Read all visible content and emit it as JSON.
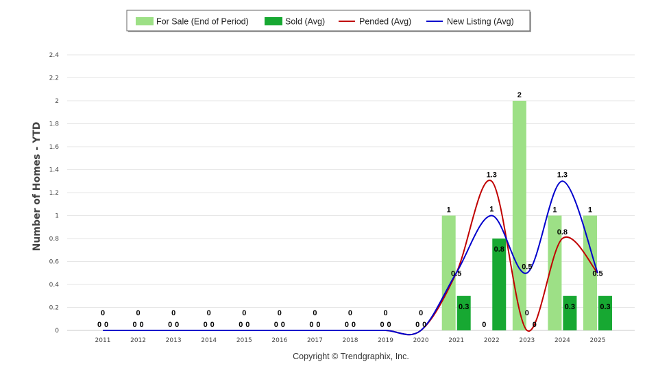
{
  "chart_data": {
    "type": "bar",
    "ylabel": "Number of Homes - YTD",
    "xlabel": "",
    "ylim": [
      0,
      2.4
    ],
    "yticks": [
      "0",
      "0.2",
      "0.4",
      "0.6",
      "0.8",
      "1",
      "1.2",
      "1.4",
      "1.6",
      "1.8",
      "2",
      "2.2",
      "2.4"
    ],
    "grid": true,
    "legend_position": "top-center",
    "categories": [
      "2011",
      "2012",
      "2013",
      "2014",
      "2015",
      "2016",
      "2017",
      "2018",
      "2019",
      "2020",
      "2021",
      "2022",
      "2023",
      "2024",
      "2025"
    ],
    "series": [
      {
        "name": "For Sale (End of Period)",
        "kind": "bar",
        "color": "#9de086",
        "values": [
          0,
          0,
          0,
          0,
          0,
          0,
          0,
          0,
          0,
          0,
          1,
          0,
          2,
          1,
          1
        ],
        "labels": [
          "0",
          "0",
          "0",
          "0",
          "0",
          "0",
          "0",
          "0",
          "0",
          "0",
          "1",
          "0",
          "2",
          "1",
          "1"
        ]
      },
      {
        "name": "Sold (Avg)",
        "kind": "bar",
        "color": "#17a832",
        "values": [
          0,
          0,
          0,
          0,
          0,
          0,
          0,
          0,
          0,
          0,
          0.3,
          0.8,
          0,
          0.3,
          0.3
        ],
        "labels": [
          "0",
          "0",
          "0",
          "0",
          "0",
          "0",
          "0",
          "0",
          "0",
          "0",
          "0.3",
          "0.8",
          "0",
          "0.3",
          "0.3"
        ]
      },
      {
        "name": "Pended (Avg)",
        "kind": "line",
        "color": "#c00000",
        "values": [
          0,
          0,
          0,
          0,
          0,
          0,
          0,
          0,
          0,
          0,
          0.5,
          1.3,
          0,
          0.8,
          0.5
        ],
        "labels": [
          "0",
          "0",
          "0",
          "0",
          "0",
          "0",
          "0",
          "0",
          "0",
          "0",
          "0.5",
          "1.3",
          "0",
          "0.8",
          "0.5"
        ]
      },
      {
        "name": "New Listing (Avg)",
        "kind": "line",
        "color": "#0000cc",
        "values": [
          0,
          0,
          0,
          0,
          0,
          0,
          0,
          0,
          0,
          0,
          0.5,
          1,
          0.5,
          1.3,
          0.5
        ],
        "labels": [
          "0",
          "0",
          "0",
          "0",
          "0",
          "0",
          "0",
          "0",
          "0",
          "0",
          "0.5",
          "1",
          "0.5",
          "1.3",
          "0.5"
        ]
      }
    ]
  },
  "footer": {
    "copyright": "Copyright © Trendgraphix, Inc."
  }
}
